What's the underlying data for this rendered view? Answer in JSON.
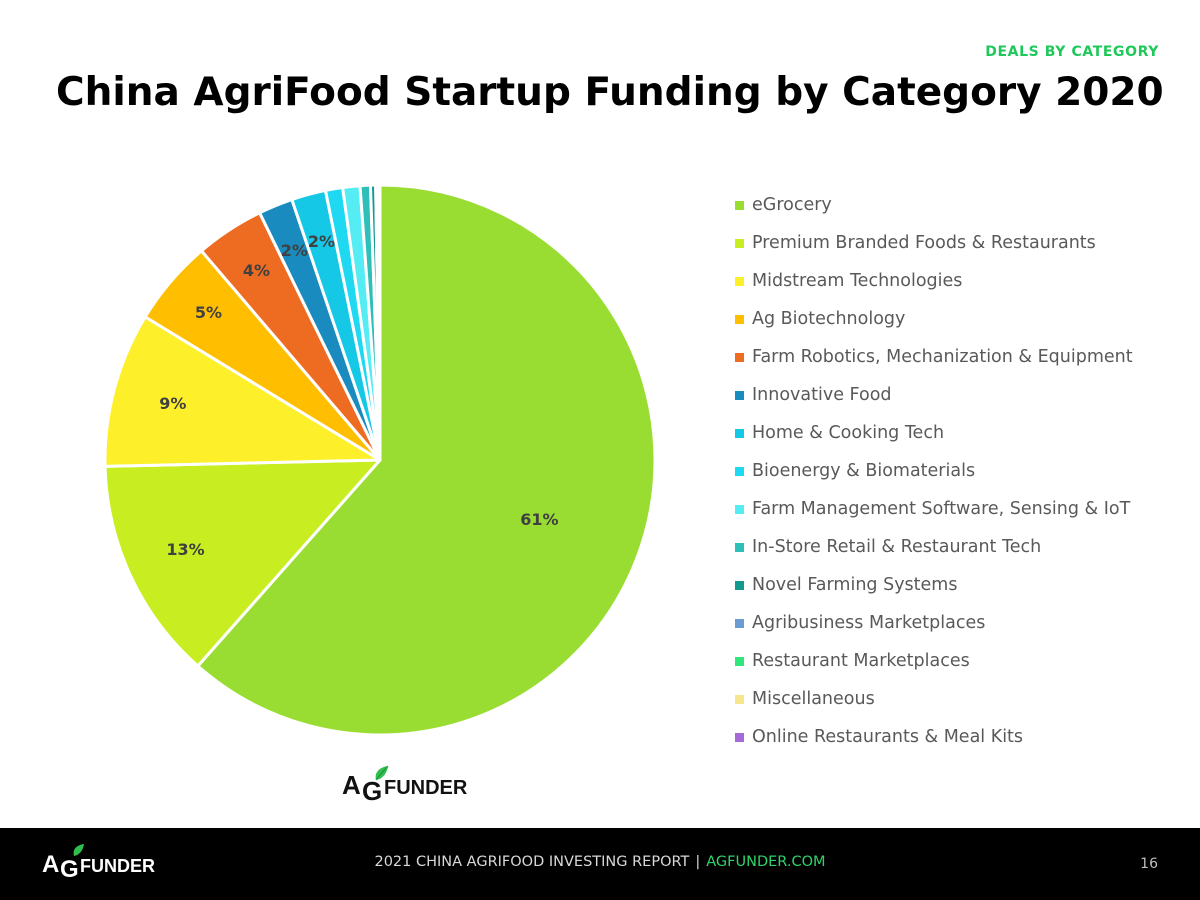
{
  "header": {
    "section_tag": "DEALS BY CATEGORY",
    "title": "China AgriFood Startup Funding by Category 2020"
  },
  "chart_data": {
    "type": "pie",
    "title": "China AgriFood Startup Funding by Category 2020",
    "start_angle_deg": 0,
    "direction": "clockwise",
    "slices": [
      {
        "label": "eGrocery",
        "value": 61,
        "display": "61%",
        "color": "#99dd33"
      },
      {
        "label": "Premium Branded Foods & Restaurants",
        "value": 13,
        "display": "13%",
        "color": "#c8ee22"
      },
      {
        "label": "Midstream Technologies",
        "value": 9,
        "display": "9%",
        "color": "#fdf02a"
      },
      {
        "label": "Ag Biotechnology",
        "value": 5,
        "display": "5%",
        "color": "#ffbf00"
      },
      {
        "label": "Farm Robotics, Mechanization & Equipment",
        "value": 4,
        "display": "4%",
        "color": "#ee6c22"
      },
      {
        "label": "Innovative Food",
        "value": 2,
        "display": "2%",
        "color": "#1a8bbf"
      },
      {
        "label": "Home & Cooking Tech",
        "value": 2,
        "display": "2%",
        "color": "#15c9e6"
      },
      {
        "label": "Bioenergy & Biomaterials",
        "value": 1,
        "display": "",
        "color": "#1fd8f2"
      },
      {
        "label": "Farm Management Software, Sensing & IoT",
        "value": 1,
        "display": "",
        "color": "#55ecf4"
      },
      {
        "label": "In-Store Retail & Restaurant Tech",
        "value": 0.6,
        "display": "",
        "color": "#2dbfb8"
      },
      {
        "label": "Novel Farming Systems",
        "value": 0.3,
        "display": "",
        "color": "#129a8f"
      },
      {
        "label": "Agribusiness Marketplaces",
        "value": 0.1,
        "display": "",
        "color": "#6b9bd2"
      },
      {
        "label": "Restaurant Marketplaces",
        "value": 0.05,
        "display": "",
        "color": "#2ee67a"
      },
      {
        "label": "Miscellaneous",
        "value": 0.05,
        "display": "",
        "color": "#f7e68e"
      },
      {
        "label": "Online Restaurants & Meal Kits",
        "value": 0.05,
        "display": "",
        "color": "#a66ad8"
      }
    ],
    "legend_position": "right"
  },
  "logos": {
    "center_logo_text": "AGFUNDER",
    "footer_logo_text": "AGFUNDER"
  },
  "footer": {
    "report_text": "2021 CHINA AGRIFOOD INVESTING REPORT",
    "separator": "|",
    "url": "AGFUNDER.COM",
    "page_number": "16"
  },
  "colors": {
    "accent_green": "#1ec85a",
    "footer_background": "#000000"
  }
}
